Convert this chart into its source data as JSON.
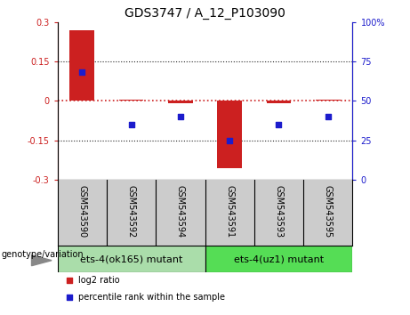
{
  "title": "GDS3747 / A_12_P103090",
  "samples": [
    "GSM543590",
    "GSM543592",
    "GSM543594",
    "GSM543591",
    "GSM543593",
    "GSM543595"
  ],
  "log2_ratio": [
    0.27,
    0.003,
    -0.008,
    -0.255,
    -0.008,
    0.003
  ],
  "percentile_rank": [
    68,
    35,
    40,
    25,
    35,
    40
  ],
  "ylim_left": [
    -0.3,
    0.3
  ],
  "ylim_right": [
    0,
    100
  ],
  "yticks_left": [
    -0.3,
    -0.15,
    0.0,
    0.15,
    0.3
  ],
  "ytick_left_labels": [
    "-0.3",
    "-0.15",
    "0",
    "0.15",
    "0.3"
  ],
  "yticks_right": [
    0,
    25,
    50,
    75,
    100
  ],
  "ytick_right_labels": [
    "0",
    "25",
    "50",
    "75",
    "100%"
  ],
  "bar_color": "#cc2020",
  "dot_color": "#1c1ccc",
  "hline_color": "#cc2020",
  "grid_color": "#222222",
  "group0_color": "#aaddaa",
  "group1_color": "#55dd55",
  "group0_label": "ets-4(ok165) mutant",
  "group1_label": "ets-4(uz1) mutant",
  "legend_log2_label": "log2 ratio",
  "legend_pct_label": "percentile rank within the sample",
  "genotype_label": "genotype/variation",
  "title_fontsize": 10,
  "tick_fontsize": 7,
  "sample_fontsize": 7,
  "group_fontsize": 8,
  "legend_fontsize": 7,
  "geno_fontsize": 7,
  "bar_width": 0.5,
  "dot_size": 20
}
